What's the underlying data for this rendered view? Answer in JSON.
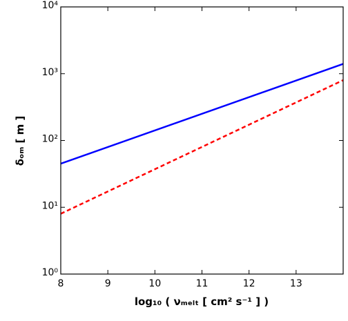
{
  "chart_data": {
    "type": "line",
    "xlabel": "log₁₀ ( νₘₑₗₜ [ cm² s⁻¹ ] )",
    "ylabel": "δₒₘ [ m ]",
    "x": [
      8,
      14
    ],
    "series": [
      {
        "color": "#0000ff",
        "linestyle": "solid",
        "values": [
          45,
          1400
        ]
      },
      {
        "color": "#ff0000",
        "linestyle": "dashed",
        "values": [
          8,
          800
        ]
      }
    ],
    "xlim": [
      8,
      14
    ],
    "xticks": [
      8,
      9,
      10,
      11,
      12,
      13
    ],
    "ylim": [
      1,
      10000
    ],
    "ylog": true,
    "yticks": [
      {
        "value": 1,
        "label": "10⁰"
      },
      {
        "value": 10,
        "label": "10¹"
      },
      {
        "value": 100,
        "label": "10²"
      },
      {
        "value": 1000,
        "label": "10³"
      },
      {
        "value": 10000,
        "label": "10⁴"
      }
    ]
  }
}
